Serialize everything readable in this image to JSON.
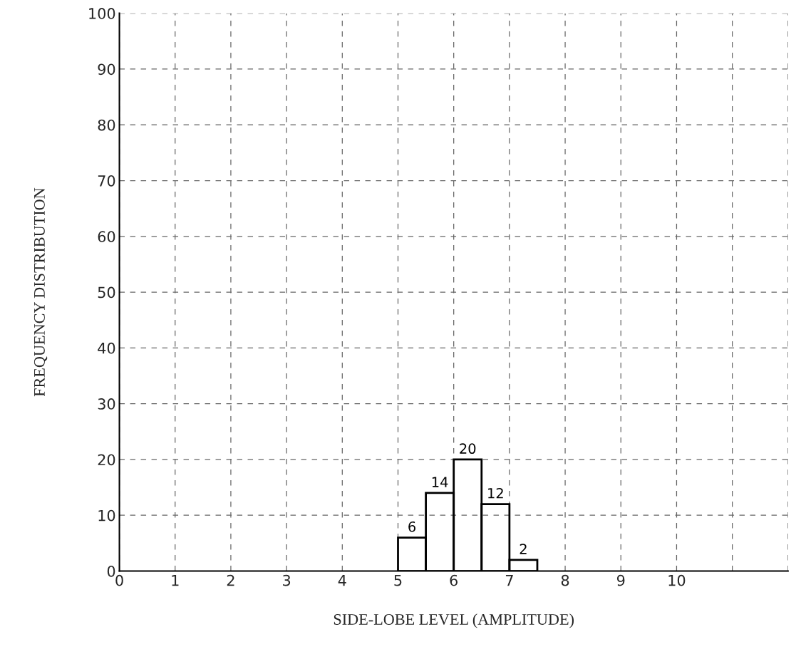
{
  "chart_data": {
    "type": "histogram",
    "xlabel": "SIDE-LOBE LEVEL (AMPLITUDE)",
    "ylabel": "FREQUENCY DISTRIBUTION",
    "bins": [
      5,
      5.5,
      6,
      6.5,
      7,
      7.5
    ],
    "values": [
      6,
      14,
      20,
      12,
      2
    ],
    "color": "#000000",
    "data_labels": true,
    "xlim": [
      0,
      12
    ],
    "xticks": [
      0,
      1,
      2,
      3,
      4,
      5,
      6,
      7,
      8,
      9,
      10,
      {
        "value": 11,
        "label": null
      },
      {
        "value": 12,
        "label": null
      }
    ],
    "ylim": [
      0,
      100
    ],
    "yticks": [
      0,
      10,
      20,
      30,
      40,
      50,
      60,
      70,
      80,
      90,
      100
    ],
    "grid": true
  }
}
